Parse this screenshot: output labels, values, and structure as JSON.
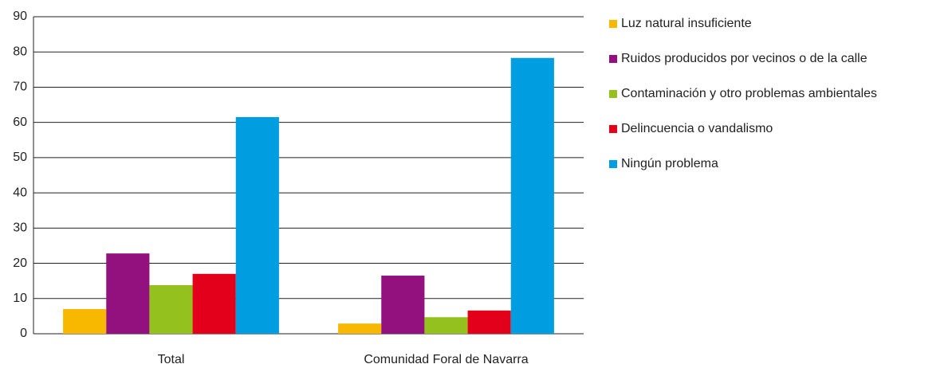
{
  "chart_data": {
    "type": "bar",
    "categories": [
      "Total",
      "Comunidad Foral de Navarra"
    ],
    "series": [
      {
        "name": "Luz natural insuficiente",
        "color": "#f9b800",
        "values": [
          7.0,
          2.9
        ]
      },
      {
        "name": "Ruidos producidos por vecinos o de la calle",
        "color": "#93117e",
        "values": [
          22.8,
          16.5
        ]
      },
      {
        "name": "Contaminación y otro problemas ambientales",
        "color": "#95c11f",
        "values": [
          13.8,
          4.7
        ]
      },
      {
        "name": "Delincuencia o vandalismo",
        "color": "#e2001a",
        "values": [
          17.0,
          6.6
        ]
      },
      {
        "name": "Ningún problema",
        "color": "#009ee0",
        "values": [
          61.5,
          78.3
        ]
      }
    ],
    "ylim": [
      0,
      90
    ],
    "yticks": [
      0,
      10,
      20,
      30,
      40,
      50,
      60,
      70,
      80,
      90
    ],
    "grid": true,
    "legend": "right"
  }
}
